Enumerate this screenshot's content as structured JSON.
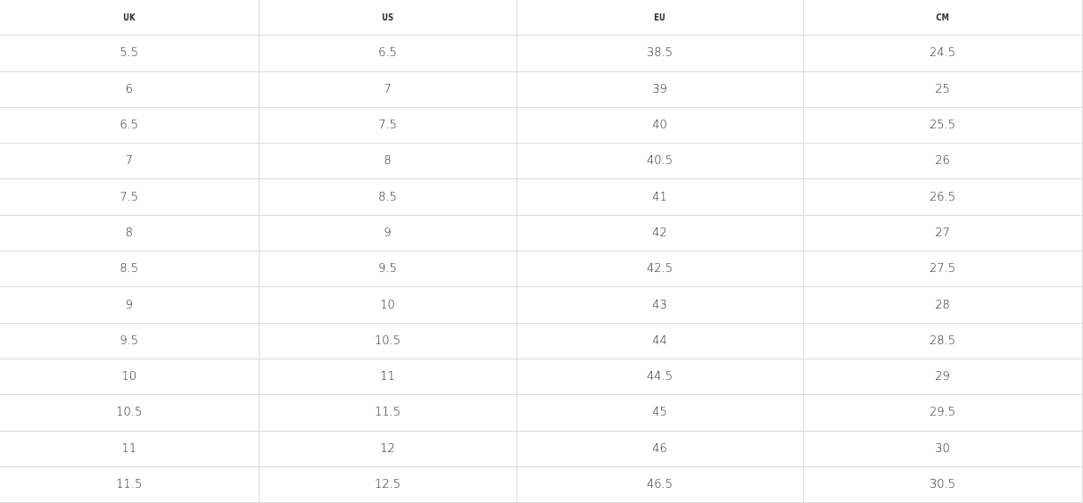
{
  "table": {
    "headers": [
      "UK",
      "US",
      "EU",
      "CM"
    ],
    "rows": [
      [
        "5.5",
        "6.5",
        "38.5",
        "24.5"
      ],
      [
        "6",
        "7",
        "39",
        "25"
      ],
      [
        "6.5",
        "7.5",
        "40",
        "25.5"
      ],
      [
        "7",
        "8",
        "40.5",
        "26"
      ],
      [
        "7.5",
        "8.5",
        "41",
        "26.5"
      ],
      [
        "8",
        "9",
        "42",
        "27"
      ],
      [
        "8.5",
        "9.5",
        "42.5",
        "27.5"
      ],
      [
        "9",
        "10",
        "43",
        "28"
      ],
      [
        "9.5",
        "10.5",
        "44",
        "28.5"
      ],
      [
        "10",
        "11",
        "44.5",
        "29"
      ],
      [
        "10.5",
        "11.5",
        "45",
        "29.5"
      ],
      [
        "11",
        "12",
        "46",
        "30"
      ],
      [
        "11.5",
        "12.5",
        "46.5",
        "30.5"
      ]
    ]
  }
}
